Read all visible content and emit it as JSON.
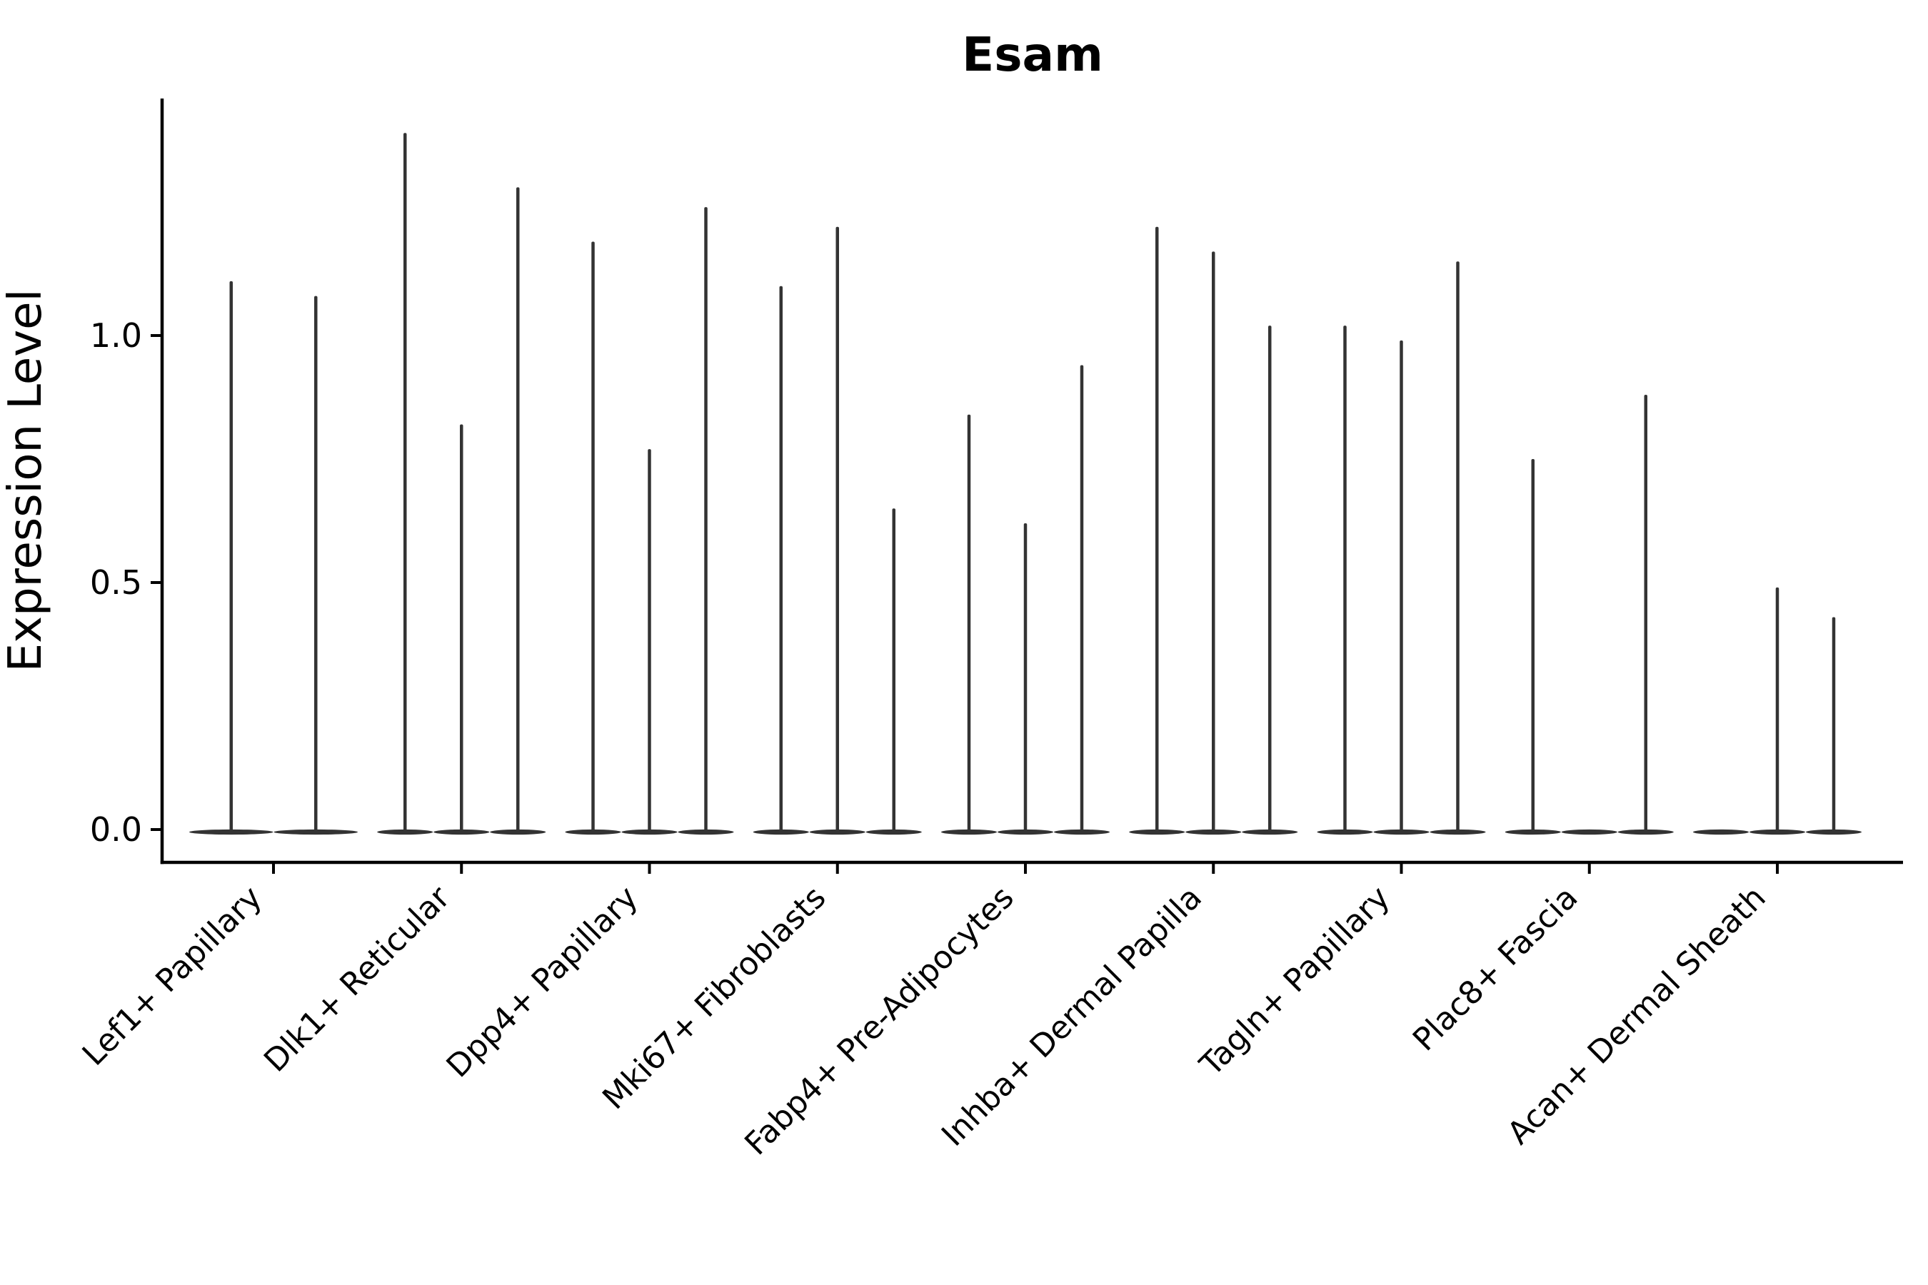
{
  "chart_data": {
    "type": "violin",
    "title": "Esam",
    "xlabel": "",
    "ylabel": "Expression Level",
    "grid": false,
    "legend": "none",
    "background_color": "#ffffff",
    "axis_color": "#000000",
    "violin_color": "#333333",
    "ylim": [
      -0.07,
      1.48
    ],
    "y_ticks": [
      {
        "value": 0.0,
        "label": "0.0"
      },
      {
        "value": 0.5,
        "label": "0.5"
      },
      {
        "value": 1.0,
        "label": "1.0"
      }
    ],
    "x_tick_rotation_deg": 45,
    "description": "Violin plot of Esam expression; each category shows 2-3 very thin spike-shaped violins (one per split group). Values are the spike maxima in expression-level units; 0 means a flat violin collapsed on the baseline.",
    "groups": [
      {
        "category": "Lef1+ Papillary",
        "violin_maxima": [
          1.11,
          1.08
        ]
      },
      {
        "category": "Dlk1+ Reticular",
        "violin_maxima": [
          1.41,
          0.82,
          1.3
        ]
      },
      {
        "category": "Dpp4+ Papillary",
        "violin_maxima": [
          1.19,
          0.77,
          1.26
        ]
      },
      {
        "category": "Mki67+ Fibroblasts",
        "violin_maxima": [
          1.1,
          1.22,
          0.65
        ]
      },
      {
        "category": "Fabp4+ Pre-Adipocytes",
        "violin_maxima": [
          0.84,
          0.62,
          0.94
        ]
      },
      {
        "category": "Inhba+ Dermal Papilla",
        "violin_maxima": [
          1.22,
          1.17,
          1.02
        ]
      },
      {
        "category": "Tagln+ Papillary",
        "violin_maxima": [
          1.02,
          0.99,
          1.15
        ]
      },
      {
        "category": "Plac8+ Fascia",
        "violin_maxima": [
          0.75,
          0.0,
          0.88
        ]
      },
      {
        "category": "Acan+ Dermal Sheath",
        "violin_maxima": [
          0.0,
          0.49,
          0.43
        ]
      }
    ]
  }
}
